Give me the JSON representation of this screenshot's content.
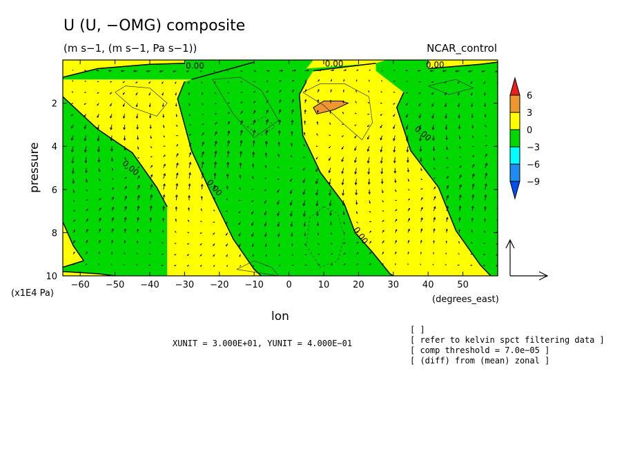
{
  "header": {
    "title": "U (U, −OMG) composite",
    "units": "(m s−1, (m s−1, Pa s−1))",
    "run": "NCAR_control"
  },
  "chart_data": {
    "type": "heatmap",
    "overlay": "vector",
    "xlabel": "lon",
    "xunit_label": "(degrees_east)",
    "ylabel": "pressure",
    "yunit_label": "(x1E4 Pa)",
    "xlim": [
      -65,
      60
    ],
    "ylim": [
      10,
      0
    ],
    "x_ticks": [
      "−60",
      "−50",
      "−40",
      "−30",
      "−20",
      "−10",
      "0",
      "10",
      "20",
      "30",
      "40",
      "50"
    ],
    "x_tick_values": [
      -60,
      -50,
      -40,
      -30,
      -20,
      -10,
      0,
      10,
      20,
      30,
      40,
      50
    ],
    "y_ticks": [
      "2",
      "4",
      "6",
      "8",
      "10"
    ],
    "y_tick_values": [
      2,
      4,
      6,
      8,
      10
    ],
    "levels": [
      -9,
      -6,
      -3,
      0,
      3,
      6
    ],
    "colorbar": {
      "labels": [
        "6",
        "3",
        "0",
        "−3",
        "−6",
        "−9"
      ],
      "colors": [
        "#e8201c",
        "#f0962e",
        "#ffff00",
        "#00d800",
        "#00ffff",
        "#1e8cf0",
        "#0050f0"
      ]
    },
    "contour_labels": [
      "0.00",
      "0.00",
      "0.00",
      "0.00",
      "0.00",
      "0.00",
      "0.00"
    ],
    "fill_colors": {
      "negative": "#00d800",
      "positive": "#ffff00",
      "max": "#f0962e"
    },
    "zero_lines": [
      [
        [
          -65,
          0.8
        ],
        [
          -55,
          0.4
        ],
        [
          -40,
          0.2
        ],
        [
          -30,
          0.15
        ]
      ],
      [
        [
          -65,
          1.7
        ],
        [
          -55,
          3.2
        ],
        [
          -45,
          4.3
        ],
        [
          -38,
          5.9
        ],
        [
          -35,
          6.8
        ]
      ],
      [
        [
          -30,
          1.0
        ],
        [
          -32,
          1.8
        ],
        [
          -28,
          4.2
        ],
        [
          -22,
          6.3
        ],
        [
          -16,
          8.3
        ],
        [
          -10,
          9.7
        ],
        [
          -8,
          10
        ]
      ],
      [
        [
          -28,
          0.9
        ],
        [
          -10,
          0.1
        ]
      ],
      [
        [
          5,
          1.0
        ],
        [
          3,
          1.6
        ],
        [
          4,
          3.5
        ],
        [
          9,
          5.2
        ],
        [
          16,
          6.7
        ],
        [
          19,
          8.0
        ],
        [
          24,
          8.9
        ],
        [
          29,
          9.9
        ],
        [
          30,
          10
        ]
      ],
      [
        [
          7,
          0.5
        ],
        [
          25,
          0.15
        ]
      ],
      [
        [
          33,
          1.5
        ],
        [
          31,
          2.2
        ],
        [
          35,
          4.2
        ],
        [
          43,
          5.9
        ],
        [
          48,
          7.9
        ],
        [
          55,
          9.5
        ],
        [
          58,
          10
        ]
      ],
      [
        [
          40,
          0.4
        ],
        [
          55,
          0.2
        ],
        [
          60,
          0.1
        ]
      ],
      [
        [
          -65,
          7.5
        ],
        [
          -62,
          8.6
        ],
        [
          -59,
          9.3
        ],
        [
          -65,
          9.6
        ]
      ],
      [
        [
          -65,
          9.8
        ],
        [
          -55,
          9.9
        ],
        [
          -50,
          10
        ]
      ]
    ],
    "max_patch": [
      [
        7,
        2.2
      ],
      [
        10,
        1.9
      ],
      [
        15,
        1.9
      ],
      [
        17,
        2.0
      ],
      [
        13,
        2.3
      ],
      [
        8,
        2.5
      ]
    ],
    "thin_contours": [
      [
        [
          -50,
          1.5
        ],
        [
          -45,
          2.2
        ],
        [
          -38,
          2.6
        ],
        [
          -35,
          2.0
        ],
        [
          -40,
          1.3
        ],
        [
          -47,
          1.2
        ]
      ],
      [
        [
          -22,
          0.9
        ],
        [
          -16,
          2.5
        ],
        [
          -10,
          3.6
        ],
        [
          -3,
          2.8
        ],
        [
          -8,
          1.4
        ],
        [
          -14,
          0.8
        ]
      ],
      [
        [
          4,
          1.5
        ],
        [
          10,
          2.1
        ],
        [
          16,
          3.0
        ],
        [
          21,
          3.7
        ],
        [
          24,
          2.9
        ],
        [
          23,
          1.7
        ],
        [
          16,
          1.1
        ],
        [
          9,
          1.1
        ]
      ],
      [
        [
          -15,
          9.7
        ],
        [
          -10,
          9.3
        ],
        [
          -5,
          9.6
        ],
        [
          -3,
          10
        ]
      ],
      [
        [
          40,
          1.2
        ],
        [
          46,
          1.6
        ],
        [
          53,
          1.3
        ],
        [
          48,
          0.9
        ]
      ]
    ],
    "dashed_contours": [
      [
        [
          10,
          6.8
        ],
        [
          6,
          7.3
        ],
        [
          5,
          8.6
        ],
        [
          9,
          9.6
        ],
        [
          14,
          9.3
        ],
        [
          16,
          8.2
        ],
        [
          14,
          7.1
        ]
      ],
      [
        [
          -12,
          3.1
        ],
        [
          -8,
          3.5
        ],
        [
          -4,
          3.1
        ],
        [
          -7,
          2.6
        ]
      ]
    ],
    "vector_field": {
      "x_start": -62,
      "x_step": 3.7,
      "nx": 34,
      "y_start": 0.5,
      "y_step": 0.5,
      "ny": 19,
      "u_scale_deg_per_unit": 5.0,
      "w_scale_p_per_unit": 0.55
    },
    "reference_vector": {
      "xunit": 30.0,
      "yunit": 0.4
    }
  },
  "footer": {
    "unit_note": "XUNIT = 3.000E+01, YUNIT = 4.000E−01",
    "notes": [
      "[  ]",
      "[ refer to kelvin spct filtering data ]",
      "[ comp threshold = 7.0e−05 ]",
      "[ (diff) from (mean) zonal ]"
    ]
  }
}
